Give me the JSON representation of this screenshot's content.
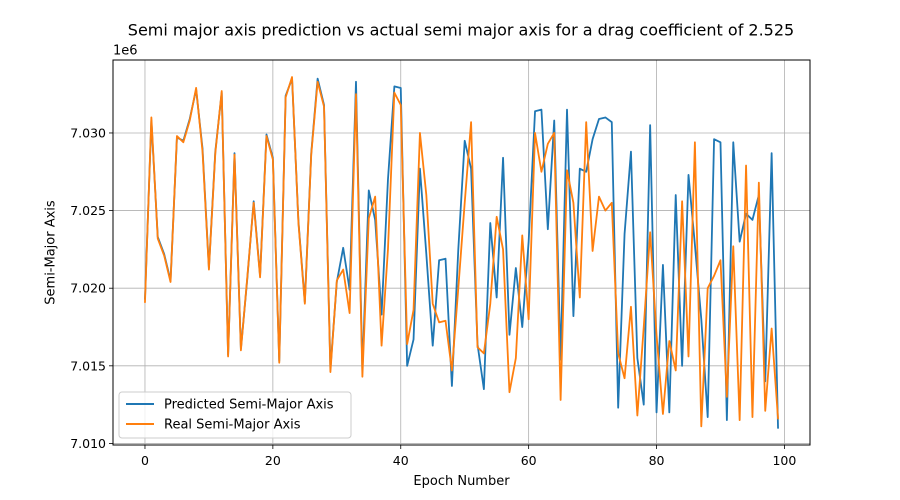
{
  "chart_data": {
    "type": "line",
    "title": "Semi major axis prediction vs actual semi major axis for a drag coefficient of 2.525",
    "xlabel": "Epoch Number",
    "ylabel": "Semi-Major Axis",
    "y_offset_label": "1e6",
    "xlim": [
      -5,
      104
    ],
    "ylim": [
      7.0099,
      7.0347
    ],
    "x_ticks": [
      0,
      20,
      40,
      60,
      80,
      100
    ],
    "y_ticks": [
      7.01,
      7.015,
      7.02,
      7.025,
      7.03
    ],
    "x_tick_labels": [
      "0",
      "20",
      "40",
      "60",
      "80",
      "100"
    ],
    "y_tick_labels": [
      "7.010",
      "7.015",
      "7.020",
      "7.025",
      "7.030"
    ],
    "grid": true,
    "legend_position": "lower-left",
    "x": [
      0,
      1,
      2,
      3,
      4,
      5,
      6,
      7,
      8,
      9,
      10,
      11,
      12,
      13,
      14,
      15,
      16,
      17,
      18,
      19,
      20,
      21,
      22,
      23,
      24,
      25,
      26,
      27,
      28,
      29,
      30,
      31,
      32,
      33,
      34,
      35,
      36,
      37,
      38,
      39,
      40,
      41,
      42,
      43,
      44,
      45,
      46,
      47,
      48,
      49,
      50,
      51,
      52,
      53,
      54,
      55,
      56,
      57,
      58,
      59,
      60,
      61,
      62,
      63,
      64,
      65,
      66,
      67,
      68,
      69,
      70,
      71,
      72,
      73,
      74,
      75,
      76,
      77,
      78,
      79,
      80,
      81,
      82,
      83,
      84,
      85,
      86,
      87,
      88,
      89,
      90,
      91,
      92,
      93,
      94,
      95,
      96,
      97,
      98,
      99
    ],
    "series": [
      {
        "name": "Predicted Semi-Major Axis",
        "color": "#1f77b4",
        "values": [
          7.0193,
          7.0308,
          7.0233,
          7.0222,
          7.0205,
          7.0297,
          7.0295,
          7.0309,
          7.0328,
          7.029,
          7.0213,
          7.0288,
          7.0326,
          7.0157,
          7.0287,
          7.0161,
          7.0206,
          7.0256,
          7.0208,
          7.0299,
          7.0284,
          7.0153,
          7.0324,
          7.0335,
          7.0243,
          7.0191,
          7.0287,
          7.0335,
          7.0318,
          7.0148,
          7.0204,
          7.0226,
          7.0199,
          7.0333,
          7.0147,
          7.0263,
          7.0244,
          7.0183,
          7.027,
          7.033,
          7.0329,
          7.015,
          7.0167,
          7.0277,
          7.0222,
          7.0163,
          7.0218,
          7.0219,
          7.0137,
          7.0225,
          7.0295,
          7.0277,
          7.0164,
          7.0135,
          7.0242,
          7.0194,
          7.0284,
          7.017,
          7.0213,
          7.0175,
          7.023,
          7.0314,
          7.0315,
          7.0238,
          7.0308,
          7.0154,
          7.0315,
          7.0182,
          7.0277,
          7.0275,
          7.0296,
          7.0309,
          7.031,
          7.0307,
          7.0123,
          7.0235,
          7.0288,
          7.0155,
          7.0125,
          7.0305,
          7.012,
          7.0215,
          7.012,
          7.026,
          7.015,
          7.0273,
          7.0228,
          7.018,
          7.0117,
          7.0296,
          7.0294,
          7.0115,
          7.0294,
          7.023,
          7.0248,
          7.0244,
          7.026,
          7.014,
          7.0287,
          7.011
        ]
      },
      {
        "name": "Real Semi-Major Axis",
        "color": "#ff7f0e",
        "values": [
          7.0191,
          7.031,
          7.0232,
          7.0221,
          7.0204,
          7.0298,
          7.0294,
          7.0308,
          7.0329,
          7.0288,
          7.0212,
          7.0287,
          7.0327,
          7.0156,
          7.0286,
          7.016,
          7.0207,
          7.0255,
          7.0207,
          7.0298,
          7.0283,
          7.0152,
          7.0323,
          7.0336,
          7.0242,
          7.019,
          7.0286,
          7.0333,
          7.0317,
          7.0146,
          7.0205,
          7.0212,
          7.0184,
          7.0325,
          7.0143,
          7.0245,
          7.0259,
          7.0163,
          7.0225,
          7.0326,
          7.0318,
          7.0164,
          7.0186,
          7.03,
          7.026,
          7.019,
          7.0178,
          7.0179,
          7.0147,
          7.02,
          7.0255,
          7.0307,
          7.0162,
          7.0158,
          7.019,
          7.0246,
          7.0225,
          7.0133,
          7.0155,
          7.0234,
          7.018,
          7.03,
          7.0275,
          7.0293,
          7.03,
          7.0128,
          7.0276,
          7.0255,
          7.0194,
          7.0307,
          7.0224,
          7.0259,
          7.025,
          7.0255,
          7.0158,
          7.0142,
          7.0188,
          7.0118,
          7.0175,
          7.0236,
          7.017,
          7.0119,
          7.0166,
          7.0147,
          7.0256,
          7.0156,
          7.0294,
          7.0111,
          7.02,
          7.0208,
          7.0218,
          7.013,
          7.0227,
          7.0115,
          7.0279,
          7.0117,
          7.0268,
          7.0121,
          7.0174,
          7.0116
        ]
      }
    ]
  }
}
